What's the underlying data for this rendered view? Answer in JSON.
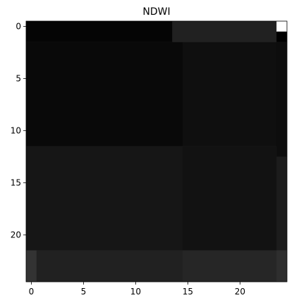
{
  "chart_data": {
    "type": "heatmap",
    "title": "NDWI",
    "colormap": "gray",
    "xlim": [
      -0.5,
      24.5
    ],
    "ylim": [
      24.5,
      -0.5
    ],
    "x_ticks": [
      0,
      5,
      10,
      15,
      20
    ],
    "y_ticks": [
      0,
      5,
      10,
      15,
      20
    ],
    "value_range": [
      0,
      1
    ],
    "regions": [
      {
        "rows": [
          0,
          1
        ],
        "cols": [
          0,
          13
        ],
        "value": 0.02
      },
      {
        "rows": [
          0,
          1
        ],
        "cols": [
          14,
          23
        ],
        "value": 0.13
      },
      {
        "rows": [
          0,
          0
        ],
        "cols": [
          24,
          24
        ],
        "value": 1.0
      },
      {
        "rows": [
          1,
          1
        ],
        "cols": [
          24,
          24
        ],
        "value": 0.0
      },
      {
        "rows": [
          2,
          11
        ],
        "cols": [
          0,
          14
        ],
        "value": 0.035
      },
      {
        "rows": [
          2,
          11
        ],
        "cols": [
          15,
          23
        ],
        "value": 0.06
      },
      {
        "rows": [
          2,
          12
        ],
        "cols": [
          24,
          24
        ],
        "value": 0.05
      },
      {
        "rows": [
          12,
          21
        ],
        "cols": [
          0,
          14
        ],
        "value": 0.085
      },
      {
        "rows": [
          12,
          21
        ],
        "cols": [
          15,
          23
        ],
        "value": 0.07
      },
      {
        "rows": [
          13,
          21
        ],
        "cols": [
          24,
          24
        ],
        "value": 0.11
      },
      {
        "rows": [
          22,
          24
        ],
        "cols": [
          0,
          0
        ],
        "value": 0.2
      },
      {
        "rows": [
          22,
          24
        ],
        "cols": [
          1,
          14
        ],
        "value": 0.13
      },
      {
        "rows": [
          22,
          24
        ],
        "cols": [
          15,
          23
        ],
        "value": 0.15
      },
      {
        "rows": [
          22,
          24
        ],
        "cols": [
          24,
          24
        ],
        "value": 0.18
      }
    ]
  }
}
